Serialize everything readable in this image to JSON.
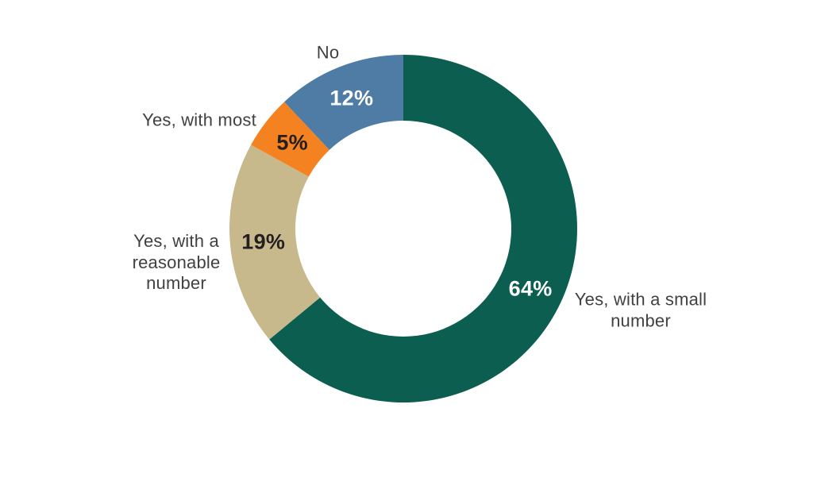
{
  "chart_data": {
    "type": "donut",
    "title": "",
    "unit": "%",
    "direction": "clockwise",
    "start_angle": "12 o'clock",
    "legend_position": "outside-labels",
    "background": "#FFFFFF",
    "label_color": "#414042",
    "segments": [
      {
        "label": "Yes, with a small\nnumber",
        "value": 64,
        "value_label": "64%",
        "color": "#0B5E50",
        "value_label_color": "#FFFFFF"
      },
      {
        "label": "Yes, with a\nreasonable\nnumber",
        "value": 19,
        "value_label": "19%",
        "color": "#C7B98B",
        "value_label_color": "#231F20"
      },
      {
        "label": "Yes, with most",
        "value": 5,
        "value_label": "5%",
        "color": "#F58220",
        "value_label_color": "#231F20"
      },
      {
        "label": "No",
        "value": 12,
        "value_label": "12%",
        "color": "#4F7CA5",
        "value_label_color": "#FFFFFF"
      }
    ]
  }
}
